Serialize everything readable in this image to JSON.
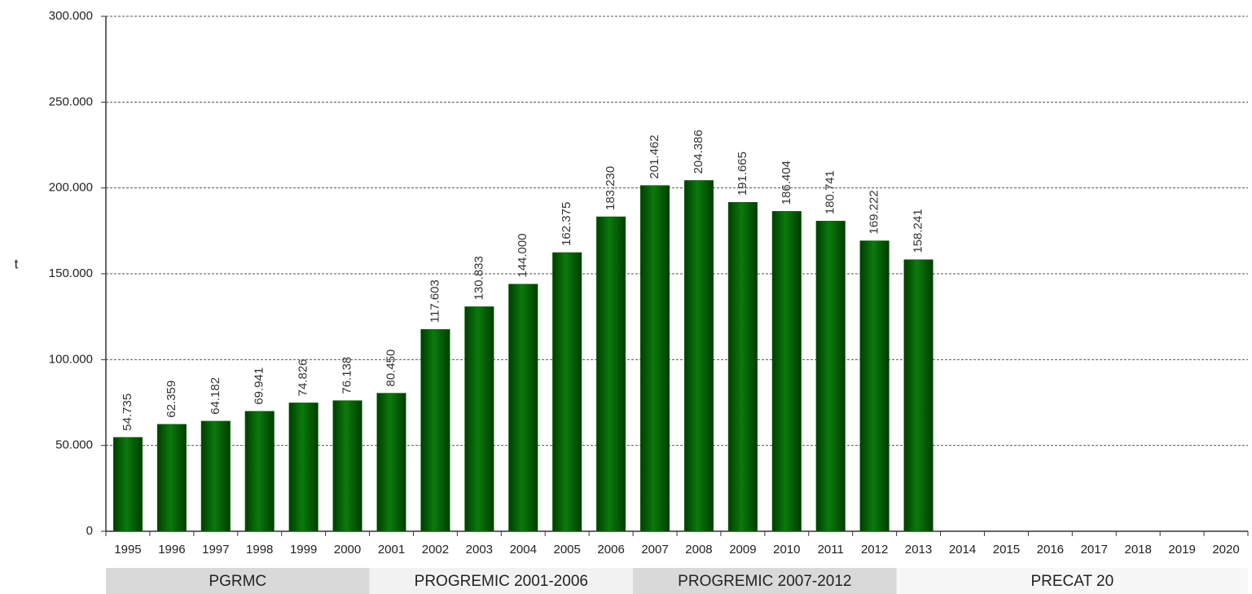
{
  "chart_data": {
    "type": "bar",
    "y_axis_label": "t",
    "categories": [
      "1995",
      "1996",
      "1997",
      "1998",
      "1999",
      "2000",
      "2001",
      "2002",
      "2003",
      "2004",
      "2005",
      "2006",
      "2007",
      "2008",
      "2009",
      "2010",
      "2011",
      "2012",
      "2013",
      "2014",
      "2015",
      "2016",
      "2017",
      "2018",
      "2019",
      "2020"
    ],
    "values": [
      54735,
      62359,
      64182,
      69941,
      74826,
      76138,
      80450,
      117603,
      130833,
      144000,
      162375,
      183230,
      201462,
      204386,
      191665,
      186404,
      180741,
      169222,
      158241,
      null,
      null,
      null,
      null,
      null,
      null,
      null
    ],
    "value_labels": [
      "54.735",
      "62.359",
      "64.182",
      "69.941",
      "74.826",
      "76.138",
      "80.450",
      "117.603",
      "130.833",
      "144.000",
      "162.375",
      "183.230",
      "201.462",
      "204.386",
      "191.665",
      "186.404",
      "180.741",
      "169.222",
      "158.241",
      null,
      null,
      null,
      null,
      null,
      null,
      null
    ],
    "color": "#0a6e0a",
    "ylim": [
      0,
      300000
    ],
    "yticks": [
      0,
      {
        "value": 50000,
        "label": "50.000"
      },
      {
        "value": 100000,
        "label": "100.000"
      },
      {
        "value": 150000,
        "label": "150.000"
      },
      {
        "value": 200000,
        "label": "200.000"
      },
      {
        "value": 250000,
        "label": "250.000"
      },
      {
        "value": 300000,
        "label": "300.000"
      }
    ],
    "grid": true,
    "periods": [
      "PGRMC",
      "PROGREMIC 2001-2006",
      "PROGREMIC 2007-2012",
      "PRECAT 20"
    ]
  }
}
